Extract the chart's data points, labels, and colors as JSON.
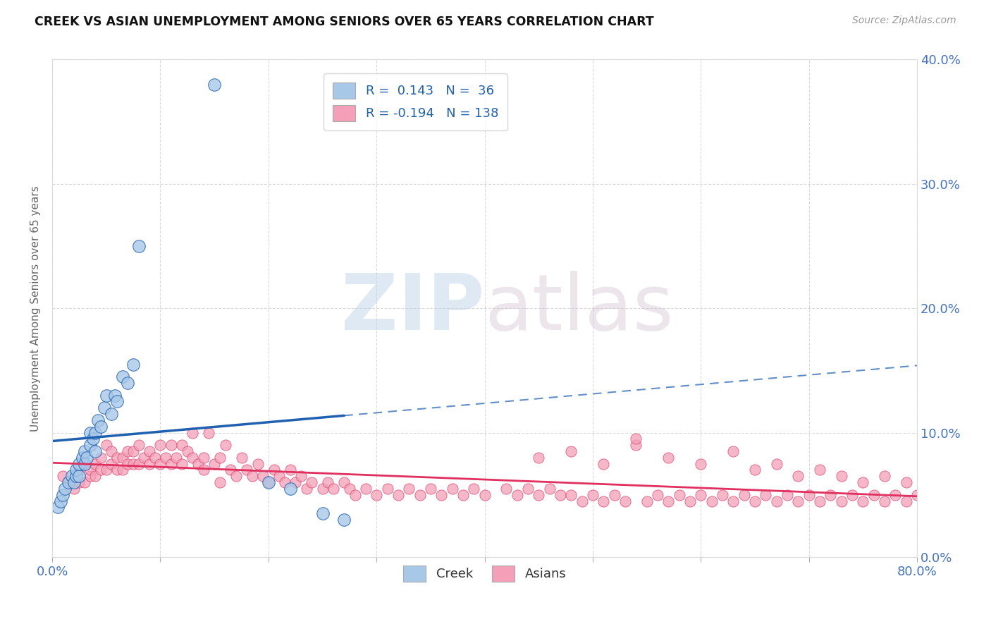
{
  "title": "CREEK VS ASIAN UNEMPLOYMENT AMONG SENIORS OVER 65 YEARS CORRELATION CHART",
  "source": "Source: ZipAtlas.com",
  "ylabel": "Unemployment Among Seniors over 65 years",
  "xlim": [
    0.0,
    0.8
  ],
  "ylim": [
    0.0,
    0.4
  ],
  "xticks": [
    0.0,
    0.1,
    0.2,
    0.3,
    0.4,
    0.5,
    0.6,
    0.7,
    0.8
  ],
  "yticks": [
    0.0,
    0.1,
    0.2,
    0.3,
    0.4
  ],
  "creek_R": 0.143,
  "creek_N": 36,
  "asian_R": -0.194,
  "asian_N": 138,
  "creek_color": "#a8c8e8",
  "asian_color": "#f4a0b8",
  "creek_line_color": "#2060b0",
  "asian_line_color": "#e0306080",
  "asian_line_solid_color": "#e03060",
  "background_color": "#ffffff",
  "grid_color": "#cccccc",
  "creek_x": [
    0.005,
    0.008,
    0.01,
    0.012,
    0.015,
    0.018,
    0.02,
    0.022,
    0.022,
    0.025,
    0.025,
    0.028,
    0.03,
    0.03,
    0.032,
    0.035,
    0.035,
    0.038,
    0.04,
    0.04,
    0.042,
    0.045,
    0.048,
    0.05,
    0.055,
    0.058,
    0.06,
    0.065,
    0.07,
    0.075,
    0.08,
    0.15,
    0.2,
    0.22,
    0.25,
    0.27
  ],
  "creek_y": [
    0.04,
    0.045,
    0.05,
    0.055,
    0.06,
    0.065,
    0.06,
    0.065,
    0.07,
    0.065,
    0.075,
    0.08,
    0.075,
    0.085,
    0.08,
    0.09,
    0.1,
    0.095,
    0.085,
    0.1,
    0.11,
    0.105,
    0.12,
    0.13,
    0.115,
    0.13,
    0.125,
    0.145,
    0.14,
    0.155,
    0.25,
    0.38,
    0.06,
    0.055,
    0.035,
    0.03
  ],
  "asian_x": [
    0.01,
    0.015,
    0.02,
    0.025,
    0.025,
    0.03,
    0.03,
    0.035,
    0.035,
    0.04,
    0.04,
    0.045,
    0.045,
    0.05,
    0.05,
    0.055,
    0.055,
    0.06,
    0.06,
    0.065,
    0.065,
    0.07,
    0.07,
    0.075,
    0.075,
    0.08,
    0.08,
    0.085,
    0.09,
    0.09,
    0.095,
    0.1,
    0.1,
    0.105,
    0.11,
    0.11,
    0.115,
    0.12,
    0.12,
    0.125,
    0.13,
    0.13,
    0.135,
    0.14,
    0.14,
    0.145,
    0.15,
    0.155,
    0.155,
    0.16,
    0.165,
    0.17,
    0.175,
    0.18,
    0.185,
    0.19,
    0.195,
    0.2,
    0.205,
    0.21,
    0.215,
    0.22,
    0.225,
    0.23,
    0.235,
    0.24,
    0.25,
    0.255,
    0.26,
    0.27,
    0.275,
    0.28,
    0.29,
    0.3,
    0.31,
    0.32,
    0.33,
    0.34,
    0.35,
    0.36,
    0.37,
    0.38,
    0.39,
    0.4,
    0.42,
    0.43,
    0.44,
    0.45,
    0.46,
    0.47,
    0.48,
    0.49,
    0.5,
    0.51,
    0.52,
    0.53,
    0.54,
    0.55,
    0.56,
    0.57,
    0.58,
    0.59,
    0.6,
    0.61,
    0.62,
    0.63,
    0.64,
    0.65,
    0.66,
    0.67,
    0.68,
    0.69,
    0.7,
    0.71,
    0.72,
    0.73,
    0.74,
    0.75,
    0.76,
    0.77,
    0.78,
    0.79,
    0.8,
    0.45,
    0.48,
    0.51,
    0.54,
    0.57,
    0.6,
    0.63,
    0.65,
    0.67,
    0.69,
    0.71,
    0.73,
    0.75,
    0.77,
    0.79
  ],
  "asian_y": [
    0.065,
    0.06,
    0.055,
    0.06,
    0.07,
    0.06,
    0.075,
    0.065,
    0.07,
    0.065,
    0.075,
    0.07,
    0.08,
    0.07,
    0.09,
    0.075,
    0.085,
    0.07,
    0.08,
    0.07,
    0.08,
    0.075,
    0.085,
    0.075,
    0.085,
    0.075,
    0.09,
    0.08,
    0.075,
    0.085,
    0.08,
    0.075,
    0.09,
    0.08,
    0.075,
    0.09,
    0.08,
    0.075,
    0.09,
    0.085,
    0.08,
    0.1,
    0.075,
    0.08,
    0.07,
    0.1,
    0.075,
    0.08,
    0.06,
    0.09,
    0.07,
    0.065,
    0.08,
    0.07,
    0.065,
    0.075,
    0.065,
    0.06,
    0.07,
    0.065,
    0.06,
    0.07,
    0.06,
    0.065,
    0.055,
    0.06,
    0.055,
    0.06,
    0.055,
    0.06,
    0.055,
    0.05,
    0.055,
    0.05,
    0.055,
    0.05,
    0.055,
    0.05,
    0.055,
    0.05,
    0.055,
    0.05,
    0.055,
    0.05,
    0.055,
    0.05,
    0.055,
    0.05,
    0.055,
    0.05,
    0.05,
    0.045,
    0.05,
    0.045,
    0.05,
    0.045,
    0.09,
    0.045,
    0.05,
    0.045,
    0.05,
    0.045,
    0.05,
    0.045,
    0.05,
    0.045,
    0.05,
    0.045,
    0.05,
    0.045,
    0.05,
    0.045,
    0.05,
    0.045,
    0.05,
    0.045,
    0.05,
    0.045,
    0.05,
    0.045,
    0.05,
    0.045,
    0.05,
    0.08,
    0.085,
    0.075,
    0.095,
    0.08,
    0.075,
    0.085,
    0.07,
    0.075,
    0.065,
    0.07,
    0.065,
    0.06,
    0.065,
    0.06
  ]
}
